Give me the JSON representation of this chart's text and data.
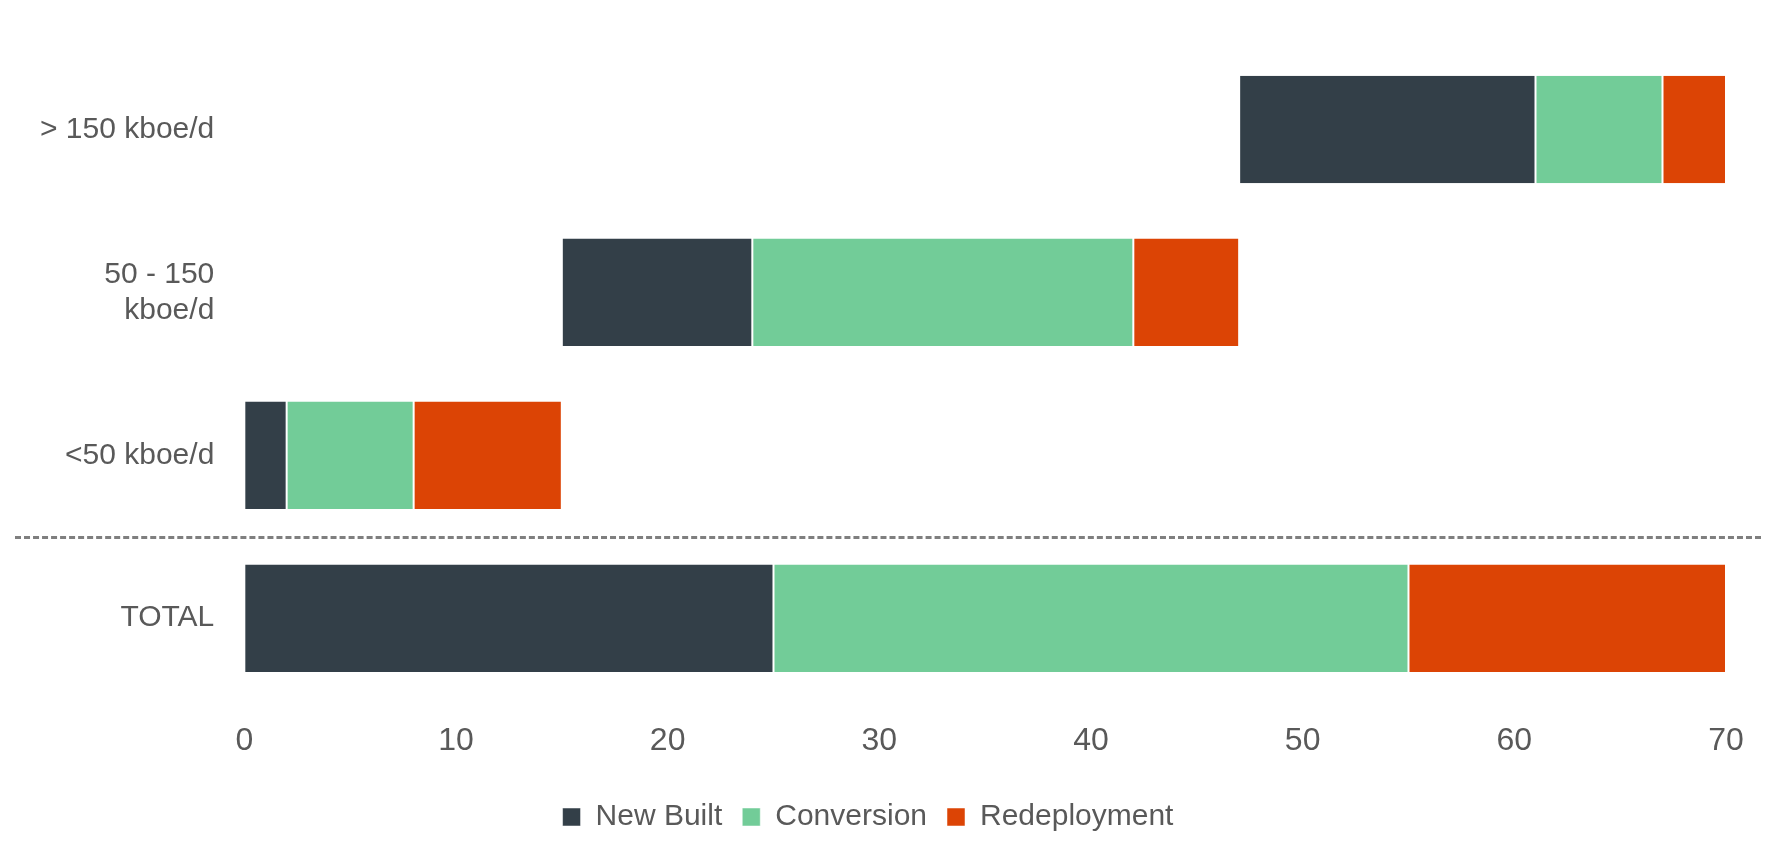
{
  "chart_data": {
    "type": "bar",
    "orientation": "horizontal",
    "categories": [
      "> 150 kboe/d",
      "50 - 150 kboe/d",
      "<50 kboe/d",
      "TOTAL"
    ],
    "series": [
      {
        "name": "New Built",
        "color": "#333f48",
        "base": [
          47,
          15,
          0,
          0
        ],
        "values": [
          14,
          9,
          2,
          25
        ]
      },
      {
        "name": "Conversion",
        "color": "#72cc98",
        "base": [
          61,
          24,
          2,
          25
        ],
        "values": [
          6,
          18,
          6,
          30
        ]
      },
      {
        "name": "Redeployment",
        "color": "#dc4405",
        "base": [
          67,
          42,
          8,
          55
        ],
        "values": [
          3,
          5,
          7,
          15
        ]
      }
    ],
    "xlim": [
      0,
      70
    ],
    "xticks": [
      0,
      10,
      20,
      30,
      40,
      50,
      60,
      70
    ],
    "grid": false,
    "legend": "bottom"
  }
}
